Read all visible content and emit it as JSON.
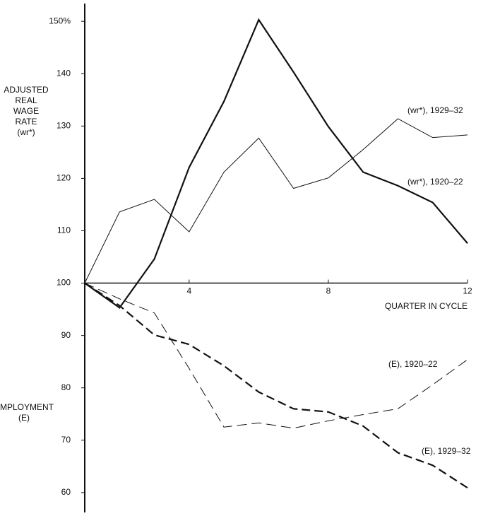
{
  "chart_data": {
    "type": "line",
    "y_label": [
      "ADJUSTED",
      "REAL",
      "WAGE",
      "RATE",
      "(wr*)"
    ],
    "y_label_lower": [
      "EMPLOYMENT",
      "(E)"
    ],
    "x_label": "QUARTER IN CYCLE",
    "x": [
      1,
      2,
      3,
      4,
      5,
      6,
      7,
      8,
      9,
      10,
      11,
      12
    ],
    "xlim": [
      1,
      12
    ],
    "xticks": [
      4,
      8,
      12
    ],
    "ylim": [
      56.2,
      153.4
    ],
    "yticks": [
      60,
      70,
      80,
      90,
      100,
      110,
      120,
      130,
      140,
      {
        "value": 150,
        "label": "150%"
      }
    ],
    "series": [
      {
        "name": "(wr*), 1929–32",
        "color": "#111111",
        "line_width": 1,
        "dashed": false,
        "values": [
          100,
          113.6,
          116.0,
          109.8,
          121.2,
          127.7,
          118.1,
          120.1,
          125.5,
          131.4,
          127.8,
          128.3
        ]
      },
      {
        "name": "(wr*), 1920–22",
        "color": "#111111",
        "line_width": 2.2,
        "dashed": false,
        "values": [
          100,
          95.3,
          104.6,
          122.1,
          134.7,
          150.3,
          140.3,
          129.9,
          121.2,
          118.6,
          115.4,
          107.6
        ]
      },
      {
        "name": "(E), 1920–22",
        "color": "#111111",
        "line_width": 1,
        "dashed": true,
        "values": [
          100,
          97.0,
          94.3,
          83.7,
          72.5,
          73.3,
          72.3,
          73.7,
          74.9,
          76.0,
          80.6,
          85.4
        ]
      },
      {
        "name": "(E), 1929–32",
        "color": "#111111",
        "line_width": 2.2,
        "dashed": true,
        "values": [
          100,
          95.7,
          90.1,
          88.3,
          84.2,
          79.2,
          76.0,
          75.4,
          72.7,
          67.6,
          65.2,
          60.9
        ]
      }
    ]
  }
}
